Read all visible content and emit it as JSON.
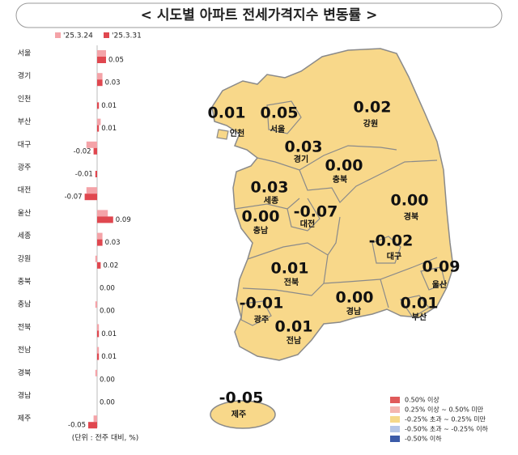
{
  "chart_data": {
    "type": "hbar",
    "title": "< 시도별 아파트 전세가격지수 변동률 >",
    "note": "(단위 : 전주 대비, %)",
    "categories": [
      "서울",
      "경기",
      "인천",
      "부산",
      "대구",
      "광주",
      "대전",
      "울산",
      "세종",
      "강원",
      "충북",
      "충남",
      "전북",
      "전남",
      "경북",
      "경남",
      "제주"
    ],
    "series": [
      {
        "name": "'25.3.24",
        "color": "#f4a3a8",
        "values": [
          0.05,
          0.03,
          0.0,
          0.02,
          -0.06,
          0.0,
          -0.06,
          0.06,
          0.03,
          -0.01,
          0.0,
          -0.01,
          0.01,
          0.01,
          -0.01,
          0.0,
          -0.02
        ]
      },
      {
        "name": "'25.3.31",
        "color": "#e0474f",
        "values": [
          0.05,
          0.03,
          0.01,
          0.01,
          -0.02,
          -0.01,
          -0.07,
          0.09,
          0.03,
          0.02,
          0,
          0,
          0.01,
          0.01,
          0,
          0,
          -0.05
        ],
        "value_labels": [
          "0.05",
          "0.03",
          "0.01",
          "0.01",
          "-0.02",
          "-0.01",
          "-0.07",
          "0.09",
          "0.03",
          "0.02",
          "0.00",
          "0.00",
          "0.01",
          "0.01",
          "0.00",
          "0.00",
          "-0.05"
        ]
      }
    ],
    "xlim": [
      -0.1,
      0.1
    ]
  },
  "map": {
    "regions": [
      {
        "name": "인천",
        "value": "0.01"
      },
      {
        "name": "서울",
        "value": "0.05"
      },
      {
        "name": "강원",
        "value": "0.02"
      },
      {
        "name": "경기",
        "value": "0.03"
      },
      {
        "name": "충북",
        "value": "0.00"
      },
      {
        "name": "세종",
        "value": "0.03"
      },
      {
        "name": "대전",
        "value": "-0.07"
      },
      {
        "name": "충남",
        "value": "0.00"
      },
      {
        "name": "경북",
        "value": "0.00"
      },
      {
        "name": "대구",
        "value": "-0.02"
      },
      {
        "name": "울산",
        "value": "0.09"
      },
      {
        "name": "전북",
        "value": "0.01"
      },
      {
        "name": "광주",
        "value": "-0.01"
      },
      {
        "name": "경남",
        "value": "0.00"
      },
      {
        "name": "부산",
        "value": "0.01"
      },
      {
        "name": "전남",
        "value": "0.01"
      },
      {
        "name": "제주",
        "value": "-0.05"
      }
    ],
    "legend": [
      {
        "label": "0.50% 이상",
        "color": "#e05a5a"
      },
      {
        "label": "0.25% 이상 ~ 0.50% 미만",
        "color": "#f4b6b0"
      },
      {
        "label": "-0.25% 초과 ~ 0.25% 미만",
        "color": "#f5d98a"
      },
      {
        "label": "-0.50% 초과 ~ -0.25% 이하",
        "color": "#b4c6e7"
      },
      {
        "label": "-0.50% 이하",
        "color": "#3b5ba8"
      }
    ]
  }
}
